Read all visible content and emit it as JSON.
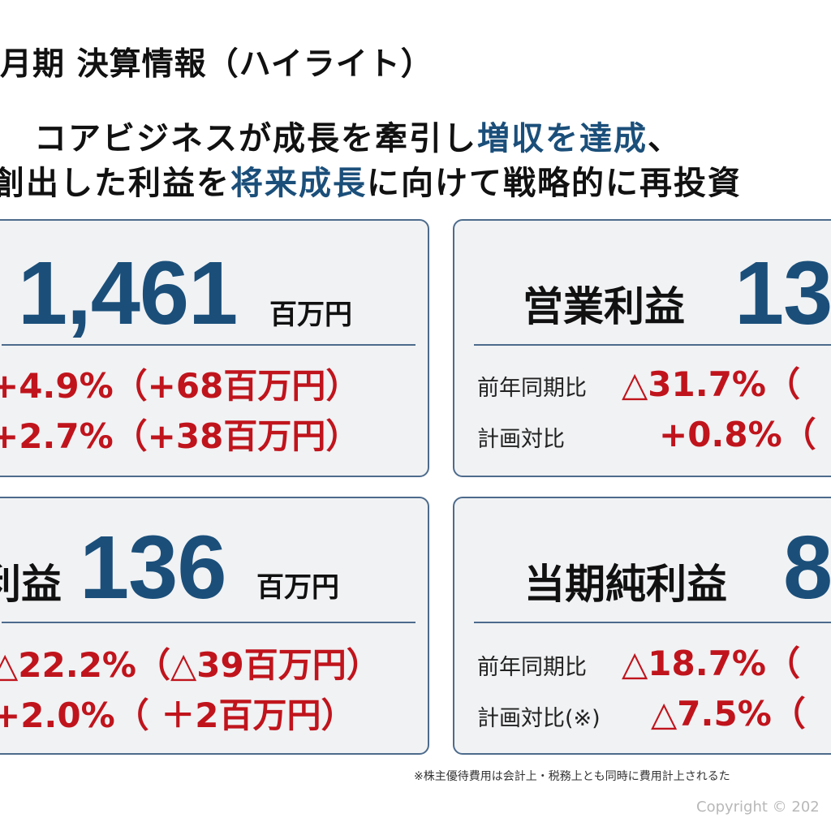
{
  "page": {
    "title": "月期 決算情報（ハイライト）",
    "headline": {
      "line1_a": "コアビジネスが成長を牽引し",
      "line1_b": "増収を達成",
      "line1_c": "、",
      "line2_a": "創出した利益を",
      "line2_b": "将来成長",
      "line2_c": "に向けて戦略的に再投資"
    }
  },
  "cards": {
    "sales": {
      "value": "1,461",
      "unit": "百万円",
      "row1": "+4.9%（+68百万円）",
      "row2": "+2.7%（+38百万円）"
    },
    "operating": {
      "label": "営業利益",
      "value": "13",
      "row1_label": "前年同期比",
      "row1_value": "△31.7%（",
      "row2_label": "計画対比",
      "row2_value": "+0.8%（"
    },
    "ordinary": {
      "label": "利益",
      "value": "136",
      "unit": "百万円",
      "row1": "△22.2%（△39百万円）",
      "row2": "+2.0%（ ＋2百万円）"
    },
    "net": {
      "label": "当期純利益",
      "value": "8",
      "row1_label": "前年同期比",
      "row1_value": "△18.7%（",
      "row2_label": "計画対比(※)",
      "row2_value": "△7.5%（"
    }
  },
  "footer": {
    "note": "※株主優待費用は会計上・税務上とも同時に費用計上されるた",
    "copyright": "Copyright © 202"
  },
  "colors": {
    "accent_blue": "#1b4f7a",
    "negative_red": "#c0141c",
    "card_border": "#4d6b8c",
    "card_bg": "#f1f2f4"
  }
}
